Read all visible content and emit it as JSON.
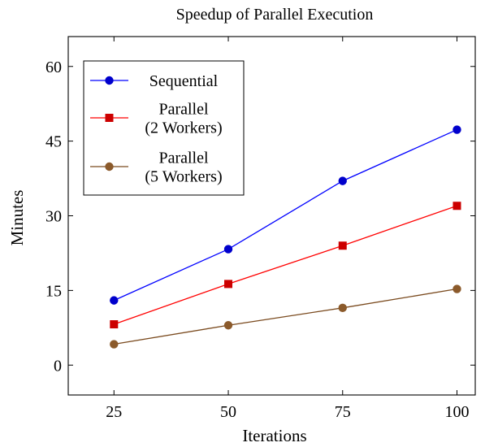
{
  "chart_data": {
    "type": "line",
    "title": "Speedup of Parallel Execution",
    "xlabel": "Iterations",
    "ylabel": "Minutes",
    "x": [
      25,
      50,
      75,
      100
    ],
    "xticks": [
      "25",
      "50",
      "75",
      "100"
    ],
    "yticks": [
      "0",
      "15",
      "30",
      "45",
      "60"
    ],
    "xlim": [
      15,
      104
    ],
    "ylim": [
      -6,
      66
    ],
    "grid": false,
    "legend_position": "top-left",
    "series": [
      {
        "name": "Sequential",
        "legend_lines": [
          "Sequential"
        ],
        "color": "#0000ff",
        "marker": "circle",
        "marker_color": "#0000cc",
        "values": [
          13.0,
          23.3,
          37.0,
          47.3
        ]
      },
      {
        "name": "Parallel (2 Workers)",
        "legend_lines": [
          "Parallel",
          "(2 Workers)"
        ],
        "color": "#ff0000",
        "marker": "square",
        "marker_color": "#cc0000",
        "values": [
          8.2,
          16.3,
          24.0,
          32.0
        ]
      },
      {
        "name": "Parallel (5 Workers)",
        "legend_lines": [
          "Parallel",
          "(5 Workers)"
        ],
        "color": "#7a4a1e",
        "marker": "circle",
        "marker_color": "#8b5a2b",
        "values": [
          4.2,
          8.0,
          11.5,
          15.3
        ]
      }
    ]
  }
}
